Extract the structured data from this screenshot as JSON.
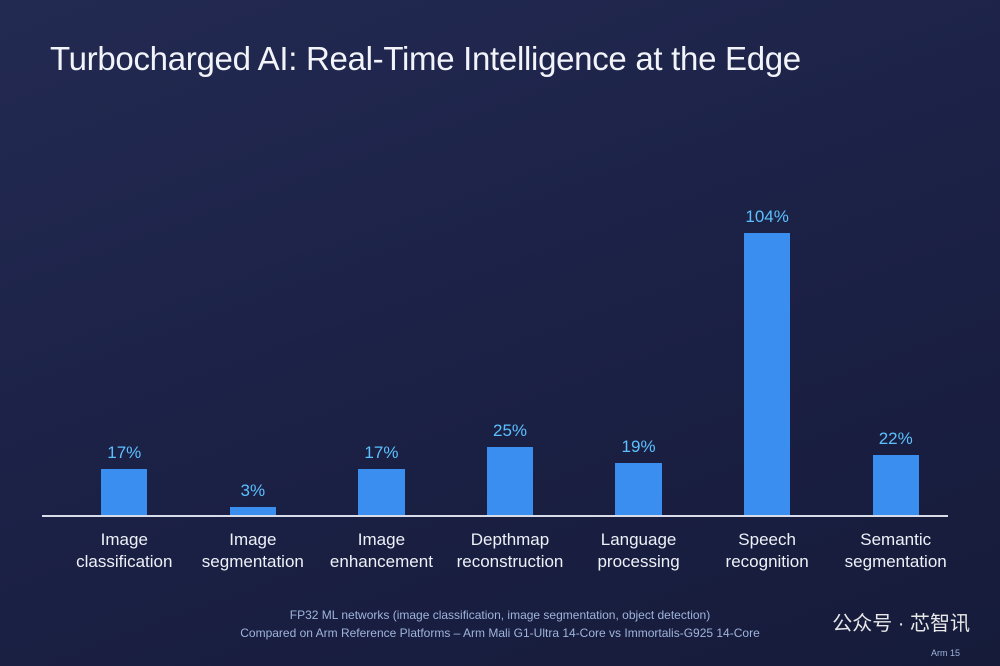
{
  "chart_data": {
    "type": "bar",
    "title": "Turbocharged AI: Real-Time Intelligence at the Edge",
    "categories": [
      "Image classification",
      "Image segmentation",
      "Image enhancement",
      "Depthmap reconstruction",
      "Language processing",
      "Speech recognition",
      "Semantic segmentation"
    ],
    "values": [
      17,
      3,
      17,
      25,
      19,
      104,
      22
    ],
    "value_labels": [
      "17%",
      "3%",
      "17%",
      "25%",
      "19%",
      "104%",
      "22%"
    ],
    "color": "#3a8ef0",
    "notes": [
      "FP32 ML networks (image classification, image segmentation, object detection)",
      "Compared on Arm Reference Platforms – Arm Mali G1-Ultra 14-Core vs Immortalis-G925 14-Core"
    ],
    "watermark": "公众号 · 芯智讯",
    "page": "Arm 15"
  }
}
